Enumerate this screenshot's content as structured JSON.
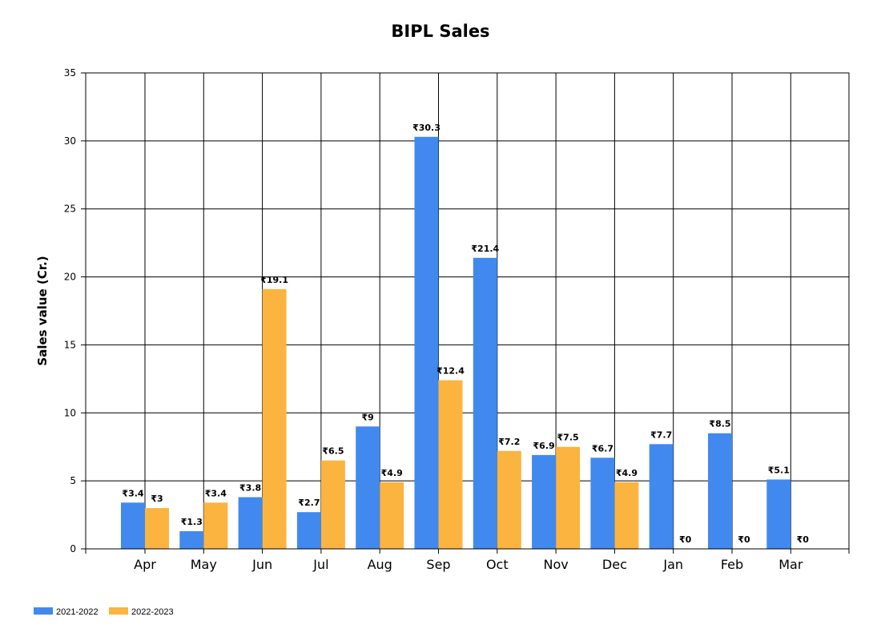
{
  "chart_data": {
    "type": "bar",
    "title": "BIPL Sales",
    "ylabel": "Sales value (Cr.)",
    "xlabel": "",
    "ylim": [
      0,
      35
    ],
    "yticks": [
      0,
      5,
      10,
      15,
      20,
      25,
      30,
      35
    ],
    "grid": true,
    "legend_position": "bottom-left",
    "value_prefix": "₹",
    "categories": [
      "Apr",
      "May",
      "Jun",
      "Jul",
      "Aug",
      "Sep",
      "Oct",
      "Nov",
      "Dec",
      "Jan",
      "Feb",
      "Mar"
    ],
    "series": [
      {
        "name": "2021-2022",
        "color": "#4189ee",
        "values": [
          3.4,
          1.3,
          3.8,
          2.7,
          9,
          30.3,
          21.4,
          6.9,
          6.7,
          7.7,
          8.5,
          5.1
        ]
      },
      {
        "name": "2022-2023",
        "color": "#fbb440",
        "values": [
          3,
          3.4,
          19.1,
          6.5,
          4.9,
          12.4,
          7.2,
          7.5,
          4.9,
          0,
          0,
          0
        ]
      }
    ]
  }
}
